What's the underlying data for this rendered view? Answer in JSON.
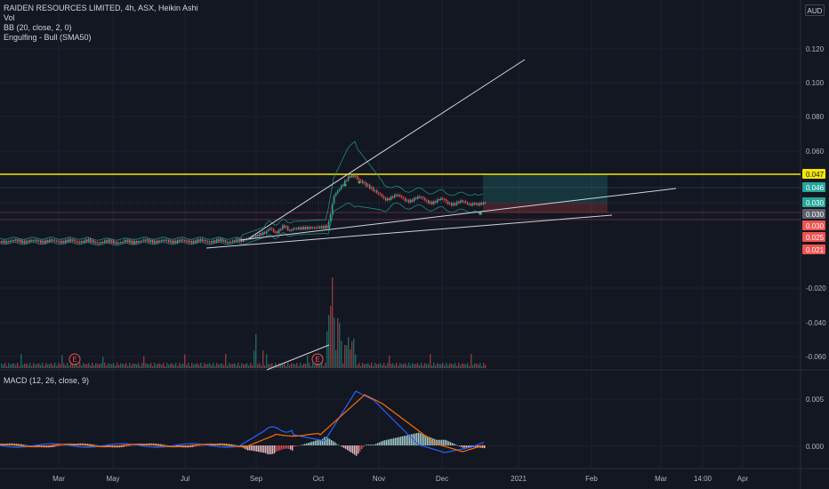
{
  "legend": {
    "symbol": "RAIDEN RESOURCES LIMITED, 4h, ASX, Heikin Ashi",
    "vol": "Vol",
    "bb": "BB (20, close, 2, 0)",
    "engulfing": "Engulfing - Bull (SMA50)"
  },
  "currency": "AUD",
  "macd_title": "MACD (12, 26, close, 9)",
  "price_axis": {
    "ticks": [
      "0.120",
      "0.100",
      "0.080",
      "0.060",
      "-0.020",
      "-0.040",
      "-0.060"
    ],
    "macd_ticks": [
      "0.005",
      "0.000"
    ]
  },
  "price_tags": [
    {
      "label": "0.047",
      "bg": "#f5e60a",
      "fg": "#131722"
    },
    {
      "label": "0.046",
      "bg": "#26a69a",
      "fg": "#ffffff"
    },
    {
      "label": "0.030",
      "bg": "#26a69a",
      "fg": "#ffffff"
    },
    {
      "label": "0.030",
      "bg": "#5d606b",
      "fg": "#ffffff"
    },
    {
      "label": "0.030",
      "bg": "#ef5350",
      "fg": "#ffffff"
    },
    {
      "label": "0.025",
      "bg": "#ef5350",
      "fg": "#ffffff"
    },
    {
      "label": "0.021",
      "bg": "#ef5350",
      "fg": "#ffffff"
    }
  ],
  "time_axis": [
    "Mar",
    "May",
    "Jul",
    "Sep",
    "Oct",
    "Nov",
    "Dec",
    "2021",
    "Feb",
    "Mar",
    "14:00",
    "Apr"
  ],
  "earnings_marker": "E",
  "colors": {
    "up": "#26a69a",
    "down": "#ef5350",
    "macd": "#2962ff",
    "signal": "#ff6d00",
    "hline": "#f5e60a",
    "bb": "#26a69a"
  }
}
